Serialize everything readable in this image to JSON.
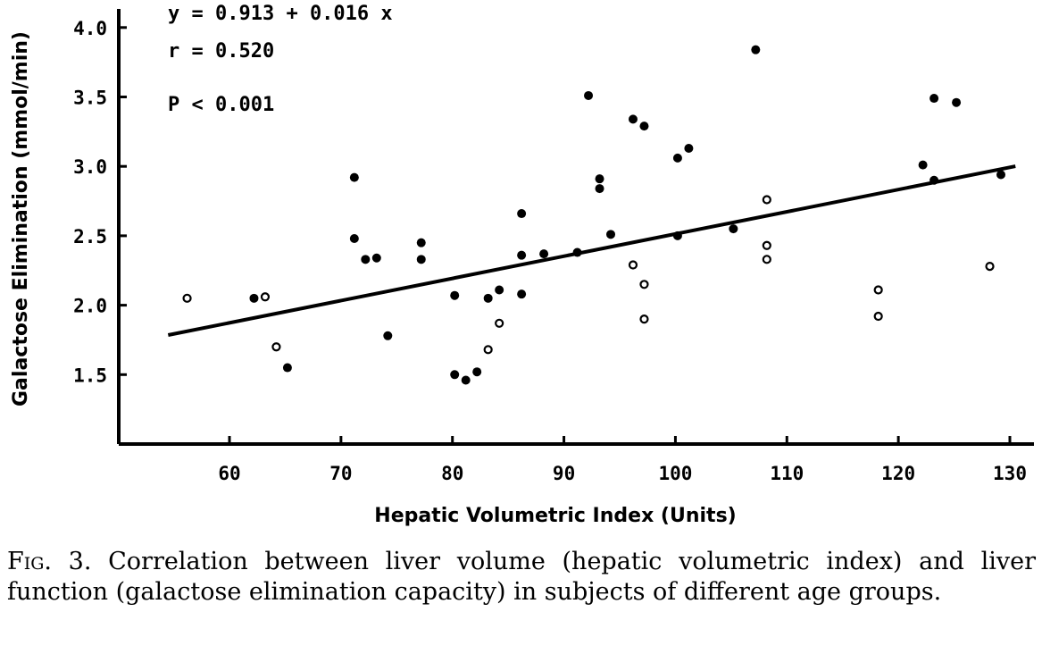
{
  "chart_data": {
    "type": "scatter",
    "xlabel": "Hepatic Volumetric Index (Units)",
    "ylabel": "Galactose Elimination (mmol/min)",
    "xlim": [
      50,
      130
    ],
    "ylim": [
      1.0,
      4.0
    ],
    "xticks": [
      "60",
      "70",
      "80",
      "90",
      "100",
      "110",
      "120",
      "130"
    ],
    "yticks": [
      "1.5",
      "2.0",
      "2.5",
      "3.0",
      "3.5",
      "4.0"
    ],
    "annotations": [
      "y = 0.913 + 0.016 x",
      "r = 0.520",
      "P < 0.001"
    ],
    "regression": {
      "intercept": 0.913,
      "slope": 0.016,
      "x_range": [
        54.5,
        130.5
      ]
    },
    "points": [
      {
        "x": 56.2,
        "y": 2.05,
        "filled": false
      },
      {
        "x": 62.2,
        "y": 2.05,
        "filled": true
      },
      {
        "x": 63.2,
        "y": 2.06,
        "filled": false
      },
      {
        "x": 64.2,
        "y": 1.7,
        "filled": false
      },
      {
        "x": 65.2,
        "y": 1.55,
        "filled": true
      },
      {
        "x": 71.2,
        "y": 2.48,
        "filled": true
      },
      {
        "x": 71.2,
        "y": 2.92,
        "filled": true
      },
      {
        "x": 72.2,
        "y": 2.33,
        "filled": true
      },
      {
        "x": 73.2,
        "y": 2.34,
        "filled": true
      },
      {
        "x": 74.2,
        "y": 1.78,
        "filled": true
      },
      {
        "x": 77.2,
        "y": 2.45,
        "filled": true
      },
      {
        "x": 77.2,
        "y": 2.33,
        "filled": true
      },
      {
        "x": 80.2,
        "y": 2.07,
        "filled": true
      },
      {
        "x": 80.2,
        "y": 1.5,
        "filled": true
      },
      {
        "x": 81.2,
        "y": 1.46,
        "filled": true
      },
      {
        "x": 82.2,
        "y": 1.52,
        "filled": true
      },
      {
        "x": 83.2,
        "y": 2.05,
        "filled": true
      },
      {
        "x": 83.2,
        "y": 1.68,
        "filled": false
      },
      {
        "x": 84.2,
        "y": 2.11,
        "filled": true
      },
      {
        "x": 84.2,
        "y": 1.87,
        "filled": false
      },
      {
        "x": 86.2,
        "y": 2.66,
        "filled": true
      },
      {
        "x": 86.2,
        "y": 2.36,
        "filled": true
      },
      {
        "x": 86.2,
        "y": 2.08,
        "filled": true
      },
      {
        "x": 88.2,
        "y": 2.37,
        "filled": true
      },
      {
        "x": 91.2,
        "y": 2.38,
        "filled": true
      },
      {
        "x": 92.2,
        "y": 3.51,
        "filled": true
      },
      {
        "x": 93.2,
        "y": 2.91,
        "filled": true
      },
      {
        "x": 93.2,
        "y": 2.84,
        "filled": true
      },
      {
        "x": 94.2,
        "y": 2.51,
        "filled": true
      },
      {
        "x": 96.2,
        "y": 3.34,
        "filled": true
      },
      {
        "x": 96.2,
        "y": 2.29,
        "filled": false
      },
      {
        "x": 97.2,
        "y": 3.29,
        "filled": true
      },
      {
        "x": 97.2,
        "y": 2.15,
        "filled": false
      },
      {
        "x": 97.2,
        "y": 1.9,
        "filled": false
      },
      {
        "x": 100.2,
        "y": 3.06,
        "filled": true
      },
      {
        "x": 100.2,
        "y": 2.5,
        "filled": true
      },
      {
        "x": 101.2,
        "y": 3.13,
        "filled": true
      },
      {
        "x": 105.2,
        "y": 2.55,
        "filled": true
      },
      {
        "x": 107.2,
        "y": 3.84,
        "filled": true
      },
      {
        "x": 108.2,
        "y": 2.76,
        "filled": false
      },
      {
        "x": 108.2,
        "y": 2.43,
        "filled": false
      },
      {
        "x": 108.2,
        "y": 2.33,
        "filled": false
      },
      {
        "x": 118.2,
        "y": 2.11,
        "filled": false
      },
      {
        "x": 118.2,
        "y": 1.92,
        "filled": false
      },
      {
        "x": 122.2,
        "y": 3.01,
        "filled": true
      },
      {
        "x": 123.2,
        "y": 3.49,
        "filled": true
      },
      {
        "x": 123.2,
        "y": 2.9,
        "filled": true
      },
      {
        "x": 125.2,
        "y": 3.46,
        "filled": true
      },
      {
        "x": 128.2,
        "y": 2.28,
        "filled": false
      },
      {
        "x": 129.2,
        "y": 2.94,
        "filled": true
      }
    ]
  },
  "caption": {
    "label": "Fig. 3.",
    "text": "Correlation between liver volume (hepatic volumetric index) and liver function (galactose elimination capacity) in subjects of different age groups."
  }
}
